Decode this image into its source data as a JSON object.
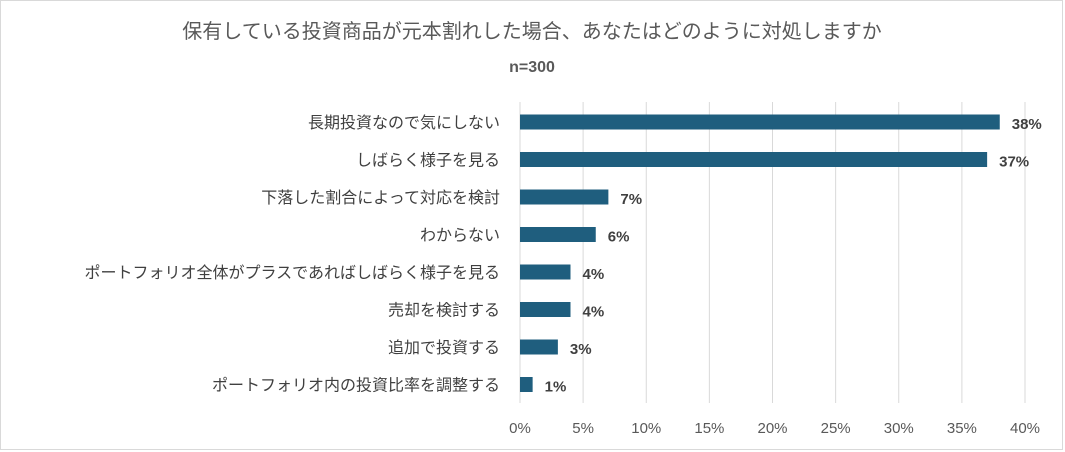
{
  "chart_data": {
    "type": "bar",
    "orientation": "horizontal",
    "title": "保有している投資商品が元本割れした場合、あなたはどのように対処しますか",
    "subtitle": "n=300",
    "categories": [
      "長期投資なので気にしない",
      "しばらく様子を見る",
      "下落した割合によって対応を検討",
      "わからない",
      "ポートフォリオ全体がプラスであればしばらく様子を見る",
      "売却を検討する",
      "追加で投資する",
      "ポートフォリオ内の投資比率を調整する"
    ],
    "values": [
      38,
      37,
      7,
      6,
      4,
      4,
      3,
      1
    ],
    "data_labels": [
      "38%",
      "37%",
      "7%",
      "6%",
      "4%",
      "4%",
      "3%",
      "1%"
    ],
    "xlim": [
      0,
      40
    ],
    "xticks": [
      0,
      5,
      10,
      15,
      20,
      25,
      30,
      35,
      40
    ],
    "xtick_labels": [
      "0%",
      "5%",
      "10%",
      "15%",
      "20%",
      "25%",
      "30%",
      "35%",
      "40%"
    ],
    "xlabel": "",
    "ylabel": "",
    "grid": true,
    "legend": "none",
    "bar_color": "#1f5e7e"
  }
}
